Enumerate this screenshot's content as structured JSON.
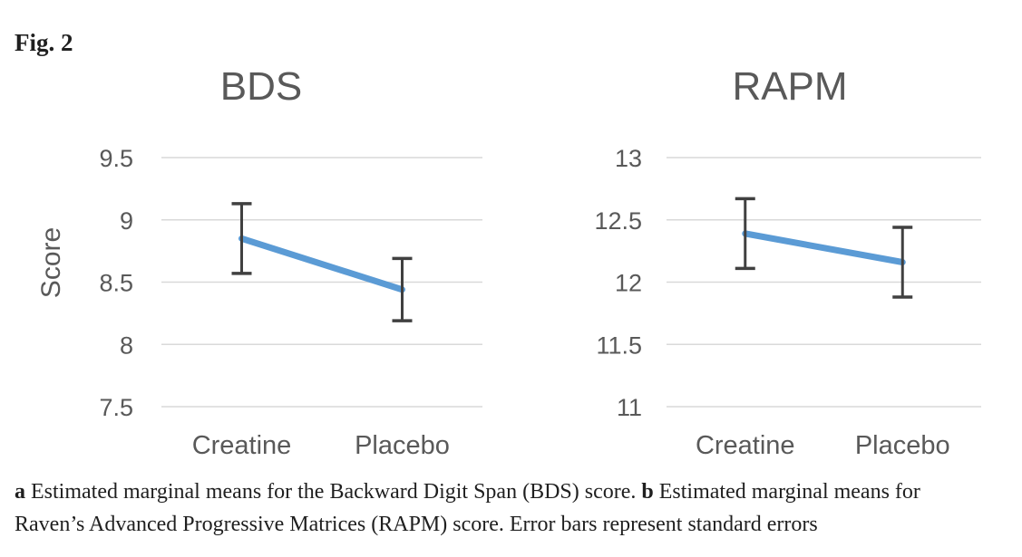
{
  "figure": {
    "label": "Fig. 2"
  },
  "caption": {
    "a_label": "a",
    "a_text": " Estimated marginal means for the Backward Digit Span (BDS) score. ",
    "b_label": "b",
    "b_text": " Estimated marginal means for Raven’s Advanced Progressive Matrices (RAPM) score. Error bars represent standard errors"
  },
  "colors": {
    "line": "#5B9BD5",
    "error_bar": "#404040",
    "gridline": "#D9D9D9",
    "axis_text": "#595959",
    "caption_text": "#1F1F1F"
  },
  "chart_data": [
    {
      "type": "line",
      "title": "BDS",
      "ylabel": "Score",
      "categories": [
        "Creatine",
        "Placebo"
      ],
      "series": [
        {
          "values": [
            8.85,
            8.44
          ],
          "errors": [
            0.28,
            0.25
          ]
        }
      ],
      "ylim": [
        7.5,
        9.5
      ],
      "yticks": [
        {
          "value": 9.5,
          "label": "9.5"
        },
        {
          "value": 9,
          "label": "9"
        },
        {
          "value": 8.5,
          "label": "8.5"
        },
        {
          "value": 8,
          "label": "8"
        },
        {
          "value": 7.5,
          "label": "7.5"
        }
      ],
      "grid": true,
      "legend": false,
      "error_bars": "standard errors"
    },
    {
      "type": "line",
      "title": "RAPM",
      "ylabel": "",
      "categories": [
        "Creatine",
        "Placebo"
      ],
      "series": [
        {
          "values": [
            12.39,
            12.16
          ],
          "errors": [
            0.28,
            0.28
          ]
        }
      ],
      "ylim": [
        11,
        13
      ],
      "yticks": [
        {
          "value": 13,
          "label": "13"
        },
        {
          "value": 12.5,
          "label": "12.5"
        },
        {
          "value": 12,
          "label": "12"
        },
        {
          "value": 11.5,
          "label": "11.5"
        },
        {
          "value": 11,
          "label": "11"
        }
      ],
      "grid": true,
      "legend": false,
      "error_bars": "standard errors"
    }
  ]
}
